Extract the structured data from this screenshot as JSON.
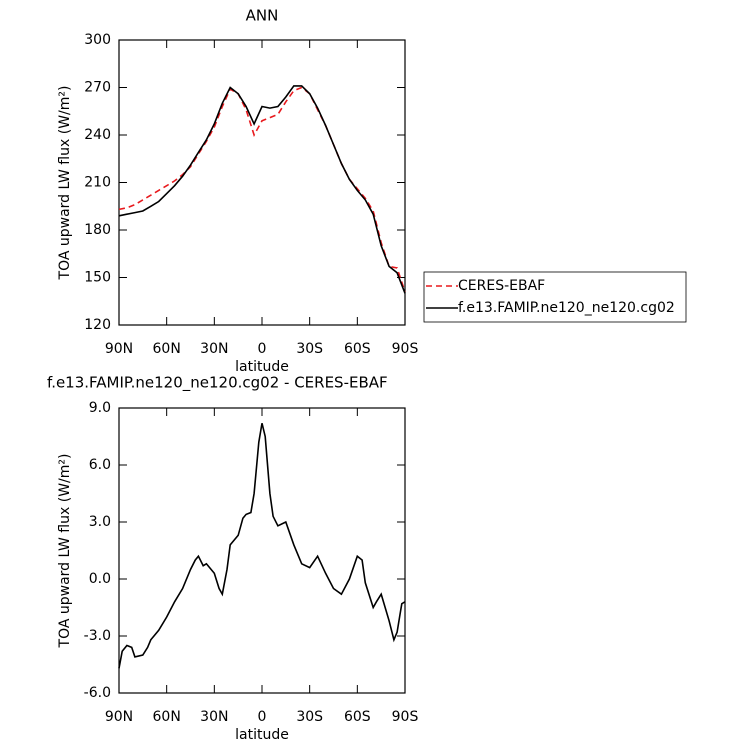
{
  "chart_data": [
    {
      "type": "line",
      "title": "ANN",
      "x_label": "latitude",
      "y_label": "TOA upward LW flux (W/m²)",
      "x": [
        90,
        85,
        80,
        75,
        70,
        65,
        60,
        55,
        50,
        45,
        40,
        35,
        30,
        25,
        20,
        15,
        10,
        5,
        0,
        -5,
        -10,
        -15,
        -20,
        -25,
        -30,
        -35,
        -40,
        -45,
        -50,
        -55,
        -60,
        -65,
        -70,
        -75,
        -80,
        -85,
        -90
      ],
      "series": [
        {
          "name": "CERES-EBAF",
          "color": "#e8191d",
          "dashed": true,
          "values": [
            193,
            194,
            196,
            199,
            202,
            205,
            208,
            211,
            215,
            220,
            228,
            236,
            245,
            258,
            269,
            266,
            256,
            240,
            249,
            251,
            253,
            261,
            268,
            270,
            266,
            256,
            246,
            234,
            222,
            212,
            206,
            200,
            192,
            172,
            157,
            156,
            141
          ]
        },
        {
          "name": "f.e13.FAMIP.ne120_ne120.cg02",
          "color": "#000000",
          "dashed": false,
          "values": [
            189,
            190,
            191,
            192,
            195,
            198,
            203,
            208,
            214,
            221,
            229,
            237,
            247,
            260,
            270,
            266,
            258,
            247,
            258,
            257,
            258,
            264,
            271,
            271,
            266,
            257,
            246,
            234,
            222,
            212,
            205,
            199,
            190,
            170,
            157,
            153,
            140
          ]
        }
      ],
      "xlim": [
        90,
        -90
      ],
      "xticks": [
        {
          "value": 90,
          "label": "90N"
        },
        {
          "value": 60,
          "label": "60N"
        },
        {
          "value": 30,
          "label": "30N"
        },
        0,
        {
          "value": -30,
          "label": "30S"
        },
        {
          "value": -60,
          "label": "60S"
        },
        {
          "value": -90,
          "label": "90S"
        }
      ],
      "ylim": [
        120,
        300
      ],
      "yticks": [
        120,
        150,
        180,
        210,
        240,
        270,
        300
      ],
      "legend": "right"
    },
    {
      "type": "line",
      "title": "f.e13.FAMIP.ne120_ne120.cg02 - CERES-EBAF",
      "x_label": "latitude",
      "y_label": "TOA upward LW flux (W/m²)",
      "x": [
        90,
        88,
        85,
        82,
        80,
        75,
        72,
        70,
        65,
        60,
        55,
        50,
        45,
        42,
        40,
        37,
        35,
        30,
        27,
        25,
        22,
        20,
        15,
        12,
        10,
        7,
        5,
        2,
        0,
        -2,
        -5,
        -7,
        -10,
        -15,
        -20,
        -25,
        -30,
        -35,
        -40,
        -45,
        -50,
        -55,
        -60,
        -63,
        -65,
        -70,
        -72,
        -75,
        -80,
        -83,
        -85,
        -87,
        -88,
        -90
      ],
      "values": [
        -4.7,
        -3.8,
        -3.5,
        -3.6,
        -4.1,
        -4.0,
        -3.6,
        -3.2,
        -2.7,
        -2.0,
        -1.2,
        -0.5,
        0.5,
        1.0,
        1.2,
        0.7,
        0.8,
        0.3,
        -0.5,
        -0.8,
        0.5,
        1.8,
        2.3,
        3.2,
        3.4,
        3.5,
        4.5,
        7.2,
        8.2,
        7.5,
        4.5,
        3.3,
        2.8,
        3.0,
        1.8,
        0.8,
        0.6,
        1.2,
        0.3,
        -0.5,
        -0.8,
        0,
        1.2,
        1.0,
        -0.2,
        -1.5,
        -1.2,
        -0.8,
        -2.2,
        -3.2,
        -2.8,
        -1.8,
        -1.3,
        -1.2
      ],
      "color": "#000000",
      "xlim": [
        90,
        -90
      ],
      "xticks": [
        {
          "value": 90,
          "label": "90N"
        },
        {
          "value": 60,
          "label": "60N"
        },
        {
          "value": 30,
          "label": "30N"
        },
        0,
        {
          "value": -30,
          "label": "30S"
        },
        {
          "value": -60,
          "label": "60S"
        },
        {
          "value": -90,
          "label": "90S"
        }
      ],
      "ylim": [
        -6,
        9
      ],
      "yticks": [
        {
          "value": -6,
          "label": "-6.0"
        },
        {
          "value": -3,
          "label": "-3.0"
        },
        {
          "value": 0,
          "label": "0.0"
        },
        {
          "value": 3,
          "label": "3.0"
        },
        {
          "value": 6,
          "label": "6.0"
        },
        {
          "value": 9,
          "label": "9.0"
        }
      ]
    }
  ]
}
